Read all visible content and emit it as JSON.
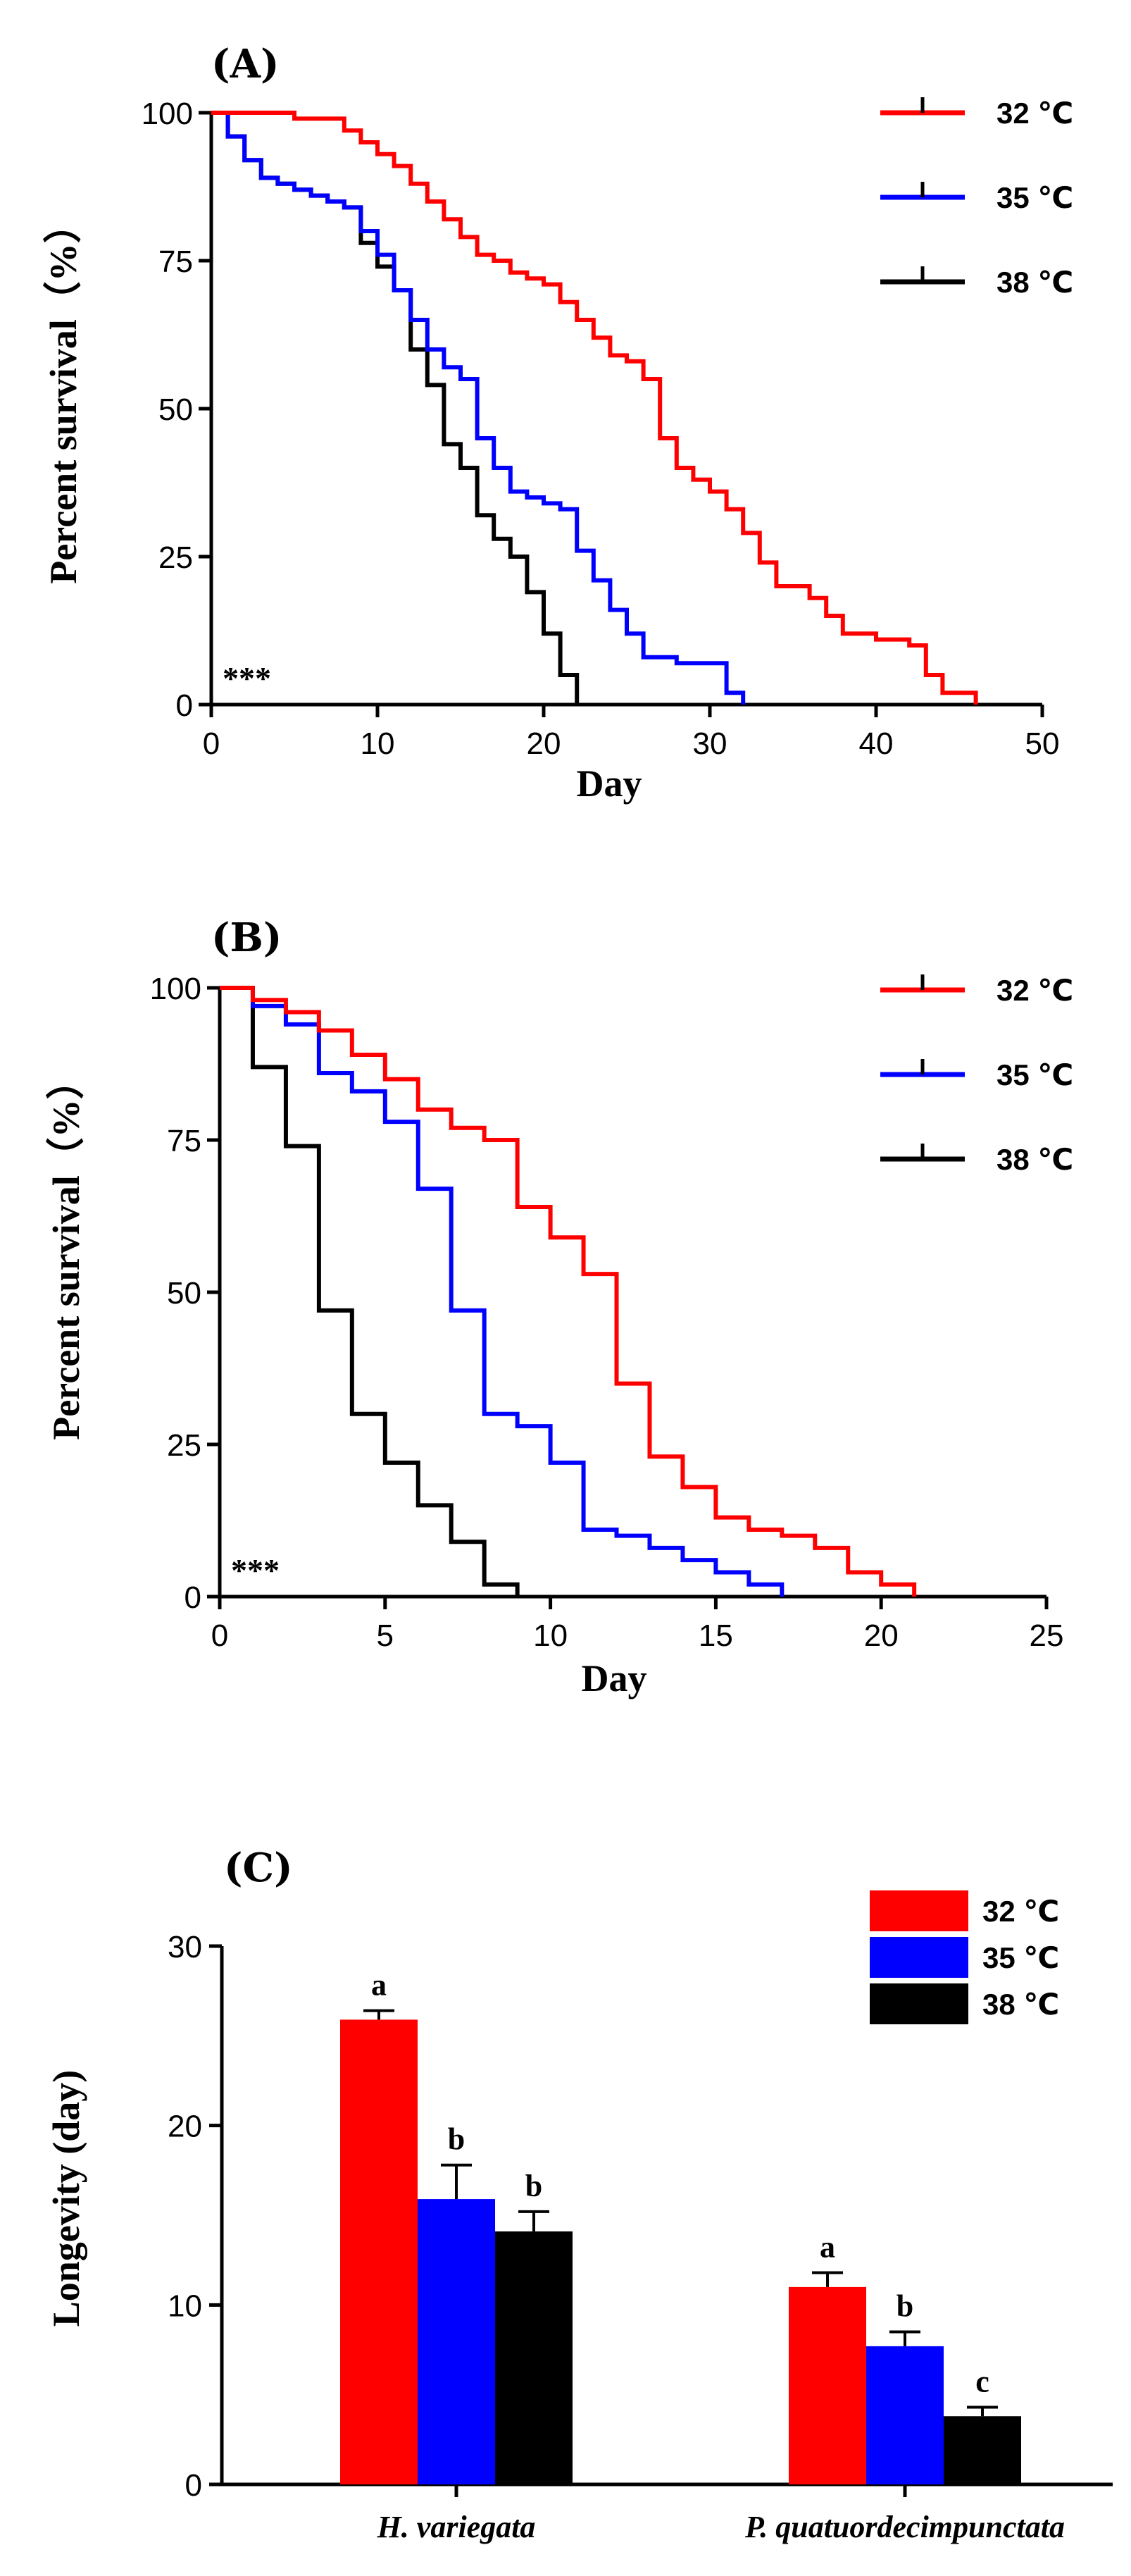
{
  "colors": {
    "c32": "#ff0000",
    "c35": "#0000ff",
    "c38": "#000000"
  },
  "chart_data": [
    {
      "panel": "(A)",
      "type": "line",
      "xlabel": "Day",
      "ylabel": "Percent survival（%）",
      "xlim": [
        0,
        50
      ],
      "ylim": [
        0,
        100
      ],
      "xticks": [
        "0",
        "10",
        "20",
        "30",
        "40",
        "50"
      ],
      "yticks": [
        "0",
        "25",
        "50",
        "75",
        "100"
      ],
      "annotation": "***",
      "legend_position": "top-right",
      "series": [
        {
          "name": "32 ℃",
          "color": "#ff0000",
          "x": [
            0,
            5,
            8,
            9,
            10,
            11,
            12,
            13,
            14,
            15,
            16,
            17,
            18,
            19,
            20,
            21,
            22,
            23,
            24,
            25,
            26,
            27,
            28,
            29,
            30,
            31,
            32,
            33,
            34,
            36,
            37,
            38,
            40,
            42,
            43,
            44,
            46
          ],
          "y": [
            100,
            99,
            97,
            95,
            93,
            91,
            88,
            85,
            82,
            79,
            76,
            75,
            73,
            72,
            71,
            68,
            65,
            62,
            59,
            58,
            55,
            45,
            40,
            38,
            36,
            33,
            29,
            24,
            20,
            18,
            15,
            12,
            11,
            10,
            5,
            2,
            0
          ]
        },
        {
          "name": "35 ℃",
          "color": "#0000ff",
          "x": [
            0,
            1,
            2,
            3,
            4,
            5,
            6,
            7,
            8,
            9,
            10,
            11,
            12,
            13,
            14,
            15,
            16,
            17,
            18,
            19,
            20,
            21,
            22,
            23,
            24,
            25,
            26,
            28,
            31,
            32
          ],
          "y": [
            100,
            96,
            92,
            89,
            88,
            87,
            86,
            85,
            84,
            80,
            76,
            70,
            65,
            60,
            57,
            55,
            45,
            40,
            36,
            35,
            34,
            33,
            26,
            21,
            16,
            12,
            8,
            7,
            2,
            0
          ]
        },
        {
          "name": "38 ℃",
          "color": "#000000",
          "x": [
            0,
            1,
            2,
            3,
            4,
            5,
            6,
            7,
            8,
            9,
            10,
            11,
            12,
            13,
            14,
            15,
            16,
            17,
            18,
            19,
            20,
            21,
            22
          ],
          "y": [
            100,
            96,
            92,
            89,
            88,
            87,
            86,
            85,
            84,
            78,
            74,
            70,
            60,
            54,
            44,
            40,
            32,
            28,
            25,
            19,
            12,
            5,
            0
          ]
        }
      ]
    },
    {
      "panel": "(B)",
      "type": "line",
      "xlabel": "Day",
      "ylabel": "Percent survival（%）",
      "xlim": [
        0,
        25
      ],
      "ylim": [
        0,
        100
      ],
      "xticks": [
        "0",
        "5",
        "10",
        "15",
        "20",
        "25"
      ],
      "yticks": [
        "0",
        "25",
        "50",
        "75",
        "100"
      ],
      "annotation": "***",
      "legend_position": "top-right",
      "series": [
        {
          "name": "32 ℃",
          "color": "#ff0000",
          "x": [
            0,
            1,
            2,
            3,
            4,
            5,
            6,
            7,
            8,
            9,
            10,
            11,
            12,
            13,
            14,
            15,
            16,
            17,
            18,
            19,
            20,
            21
          ],
          "y": [
            100,
            98,
            96,
            93,
            89,
            85,
            80,
            77,
            75,
            64,
            59,
            53,
            35,
            23,
            18,
            13,
            11,
            10,
            8,
            4,
            2,
            0
          ]
        },
        {
          "name": "35 ℃",
          "color": "#0000ff",
          "x": [
            0,
            1,
            2,
            3,
            4,
            5,
            6,
            7,
            8,
            9,
            10,
            11,
            12,
            13,
            14,
            15,
            16,
            17
          ],
          "y": [
            100,
            97,
            94,
            86,
            83,
            78,
            67,
            47,
            30,
            28,
            22,
            11,
            10,
            8,
            6,
            4,
            2,
            0
          ]
        },
        {
          "name": "38 ℃",
          "color": "#000000",
          "x": [
            0,
            1,
            2,
            3,
            4,
            5,
            6,
            7,
            8,
            9
          ],
          "y": [
            100,
            87,
            74,
            47,
            30,
            22,
            15,
            9,
            2,
            0
          ]
        }
      ]
    },
    {
      "panel": "(C)",
      "type": "bar",
      "ylabel": "Longevity (day)",
      "ylim": [
        0,
        30
      ],
      "yticks": [
        "0",
        "10",
        "20",
        "30"
      ],
      "categories": [
        "H. variegata",
        "P. quatuordecimpunctata"
      ],
      "legend_position": "top-right",
      "series": [
        {
          "name": "32 ℃",
          "color": "#ff0000",
          "values": [
            25.9,
            11.0
          ],
          "errors": [
            0.5,
            0.8
          ],
          "letters": [
            "a",
            "a"
          ]
        },
        {
          "name": "35 ℃",
          "color": "#0000ff",
          "values": [
            15.9,
            7.7
          ],
          "errors": [
            1.9,
            0.8
          ],
          "letters": [
            "b",
            "b"
          ]
        },
        {
          "name": "38 ℃",
          "color": "#000000",
          "values": [
            14.1,
            3.8
          ],
          "errors": [
            1.1,
            0.5
          ],
          "letters": [
            "b",
            "c"
          ]
        }
      ]
    }
  ]
}
